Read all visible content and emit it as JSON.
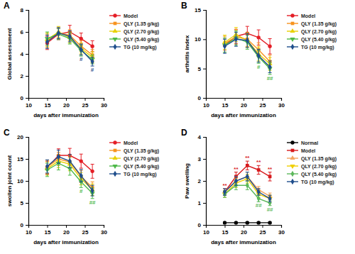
{
  "chart_data": [
    {
      "type": "line",
      "title": "A",
      "x_label": "days after immunization",
      "y_label": "Global assessment",
      "x": [
        15,
        18,
        21,
        24,
        27
      ],
      "xlim": [
        10,
        30
      ],
      "xticks": [
        10,
        15,
        20,
        25,
        30
      ],
      "ylim": [
        0,
        8
      ],
      "yticks": [
        0,
        2,
        4,
        6,
        8
      ],
      "series": [
        {
          "name": "Model",
          "color": "#e41e26",
          "marker": "circle",
          "values": [
            5.0,
            5.8,
            6.0,
            5.4,
            4.7
          ],
          "errors": [
            0.6,
            0.5,
            0.6,
            0.5,
            0.5
          ]
        },
        {
          "name": "QLY (1.35 g/kg)",
          "color": "#f7931e",
          "marker": "square",
          "values": [
            5.2,
            5.9,
            5.7,
            4.7,
            3.9
          ],
          "errors": [
            0.6,
            0.5,
            0.5,
            0.5,
            0.5
          ]
        },
        {
          "name": "QLY (2.70 g/kg)",
          "color": "#e8d000",
          "marker": "triangle",
          "values": [
            5.3,
            6.0,
            5.5,
            4.5,
            3.7
          ],
          "errors": [
            0.6,
            0.5,
            0.5,
            0.5,
            0.5
          ]
        },
        {
          "name": "QLY (5.40 g/kg)",
          "color": "#4cb848",
          "marker": "triangle-down",
          "values": [
            5.4,
            5.8,
            5.4,
            4.3,
            3.5
          ],
          "errors": [
            0.6,
            0.5,
            0.5,
            0.5,
            0.4
          ]
        },
        {
          "name": "TG (10 mg/kg)",
          "color": "#1f4e8c",
          "marker": "diamond",
          "values": [
            5.1,
            5.9,
            5.6,
            4.4,
            3.3
          ],
          "errors": [
            0.6,
            0.5,
            0.5,
            0.5,
            0.4
          ],
          "marks": [
            null,
            null,
            null,
            "#",
            "#"
          ]
        }
      ]
    },
    {
      "type": "line",
      "title": "B",
      "x_label": "days after immunization",
      "y_label": "arthritis index",
      "x": [
        15,
        18,
        21,
        24,
        27
      ],
      "xlim": [
        10,
        30
      ],
      "xticks": [
        10,
        15,
        20,
        25,
        30
      ],
      "ylim": [
        0,
        15
      ],
      "yticks": [
        0,
        5,
        10,
        15
      ],
      "series": [
        {
          "name": "Model",
          "color": "#e41e26",
          "marker": "circle",
          "values": [
            9.0,
            10.5,
            11.0,
            10.3,
            8.8
          ],
          "errors": [
            1.2,
            1.2,
            1.2,
            1.3,
            1.3
          ]
        },
        {
          "name": "QLY (1.35 g/kg)",
          "color": "#f7931e",
          "marker": "square",
          "values": [
            9.3,
            10.4,
            10.0,
            8.2,
            6.2
          ],
          "errors": [
            1.2,
            1.2,
            1.2,
            1.2,
            1.1
          ]
        },
        {
          "name": "QLY (2.70 g/kg)",
          "color": "#e8d000",
          "marker": "triangle",
          "values": [
            9.5,
            10.8,
            9.8,
            7.5,
            5.8
          ],
          "errors": [
            1.2,
            1.2,
            1.2,
            1.2,
            1.1
          ]
        },
        {
          "name": "QLY (5.40 g/kg)",
          "color": "#4cb848",
          "marker": "triangle-down",
          "values": [
            9.0,
            10.2,
            9.5,
            7.0,
            5.0
          ],
          "errors": [
            1.2,
            1.2,
            1.2,
            1.1,
            1.0
          ],
          "marks": [
            null,
            null,
            null,
            "#",
            "##"
          ]
        },
        {
          "name": "TG (10 mg/kg)",
          "color": "#1f4e8c",
          "marker": "diamond",
          "values": [
            8.8,
            10.0,
            9.8,
            7.2,
            5.3
          ],
          "errors": [
            1.2,
            1.2,
            1.2,
            1.1,
            1.0
          ]
        }
      ]
    },
    {
      "type": "line",
      "title": "C",
      "x_label": "days after immunization",
      "y_label": "swollen joint count",
      "x": [
        15,
        18,
        21,
        24,
        27
      ],
      "xlim": [
        10,
        30
      ],
      "xticks": [
        10,
        15,
        20,
        25,
        30
      ],
      "ylim": [
        0,
        20
      ],
      "yticks": [
        0,
        5,
        10,
        15,
        20
      ],
      "series": [
        {
          "name": "Model",
          "color": "#e41e26",
          "marker": "circle",
          "values": [
            13.0,
            15.8,
            15.8,
            14.5,
            12.2
          ],
          "errors": [
            1.5,
            1.5,
            1.6,
            1.6,
            1.6
          ]
        },
        {
          "name": "QLY (1.35 g/kg)",
          "color": "#f7931e",
          "marker": "square",
          "values": [
            13.2,
            15.0,
            14.3,
            11.0,
            8.5
          ],
          "errors": [
            1.5,
            1.5,
            1.5,
            1.4,
            1.3
          ]
        },
        {
          "name": "QLY (2.70 g/kg)",
          "color": "#e8d000",
          "marker": "triangle",
          "values": [
            12.8,
            14.5,
            13.8,
            10.5,
            8.0
          ],
          "errors": [
            1.5,
            1.5,
            1.5,
            1.4,
            1.3
          ]
        },
        {
          "name": "QLY (5.40 g/kg)",
          "color": "#4cb848",
          "marker": "triangle-down",
          "values": [
            12.5,
            14.0,
            12.8,
            9.8,
            7.2
          ],
          "errors": [
            1.5,
            1.5,
            1.5,
            1.3,
            1.2
          ],
          "marks": [
            null,
            null,
            null,
            "#",
            "##"
          ]
        },
        {
          "name": "TG (10 mg/kg)",
          "color": "#1f4e8c",
          "marker": "diamond",
          "values": [
            13.3,
            15.5,
            14.5,
            11.2,
            7.8
          ],
          "errors": [
            1.5,
            1.5,
            1.5,
            1.4,
            1.2
          ]
        }
      ]
    },
    {
      "type": "line",
      "title": "D",
      "x_label": "days after immunization",
      "y_label": "Paw swelling",
      "x": [
        15,
        18,
        21,
        24,
        27
      ],
      "xlim": [
        10,
        30
      ],
      "xticks": [
        10,
        15,
        20,
        25,
        30
      ],
      "ylim": [
        0,
        4
      ],
      "yticks": [
        0,
        1,
        2,
        3,
        4
      ],
      "series": [
        {
          "name": "Normal",
          "color": "#000000",
          "marker": "circle",
          "values": [
            0.1,
            0.1,
            0.1,
            0.1,
            0.1
          ],
          "errors": [
            0.03,
            0.03,
            0.03,
            0.03,
            0.03
          ]
        },
        {
          "name": "Model",
          "color": "#d7191c",
          "marker": "square",
          "values": [
            1.5,
            2.2,
            2.7,
            2.5,
            2.2
          ],
          "errors": [
            0.15,
            0.2,
            0.2,
            0.2,
            0.2
          ],
          "marks": [
            "**",
            "**",
            "**",
            "**",
            "**"
          ]
        },
        {
          "name": "QLY (1.35 g/kg)",
          "color": "#f4a460",
          "marker": "triangle",
          "values": [
            1.5,
            2.0,
            2.2,
            1.6,
            1.3
          ],
          "errors": [
            0.15,
            0.2,
            0.2,
            0.15,
            0.15
          ]
        },
        {
          "name": "QLY (2.70 g/kg)",
          "color": "#f0d000",
          "marker": "triangle-down",
          "values": [
            1.4,
            1.9,
            2.1,
            1.4,
            1.2
          ],
          "errors": [
            0.15,
            0.2,
            0.2,
            0.15,
            0.15
          ]
        },
        {
          "name": "QLY (5.40 g/kg)",
          "color": "#5cb85c",
          "marker": "diamond",
          "values": [
            1.4,
            1.8,
            1.8,
            1.2,
            1.0
          ],
          "errors": [
            0.15,
            0.2,
            0.2,
            0.15,
            0.12
          ],
          "marks": [
            null,
            null,
            null,
            "##",
            "##"
          ]
        },
        {
          "name": "TG (10 mg/kg)",
          "color": "#1f4e8c",
          "marker": "diamond",
          "values": [
            1.5,
            2.0,
            2.2,
            1.5,
            1.2
          ],
          "errors": [
            0.15,
            0.2,
            0.2,
            0.15,
            0.15
          ]
        }
      ]
    }
  ]
}
